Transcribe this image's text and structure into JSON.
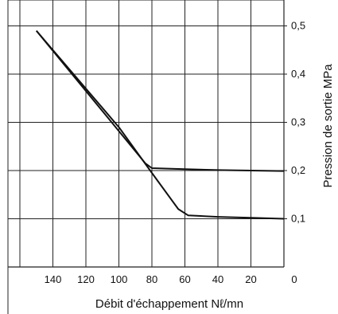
{
  "chart_data": {
    "type": "line",
    "title": "",
    "xlabel": "Débit d'échappement  Nℓ/mn",
    "ylabel": "Pression de sortie  MPa",
    "x_reversed": true,
    "xlim": [
      160,
      0
    ],
    "ylim": [
      0,
      0.55
    ],
    "grid": true,
    "x_ticks": [
      "140",
      "120",
      "100",
      "80",
      "60",
      "40",
      "20",
      "0"
    ],
    "x_tick_values": [
      140,
      120,
      100,
      80,
      60,
      40,
      20,
      0
    ],
    "y_ticks": [
      "0,5",
      "0,4",
      "0,3",
      "0,2",
      "0,1"
    ],
    "y_tick_values": [
      0.5,
      0.4,
      0.3,
      0.2,
      0.1
    ],
    "series": [
      {
        "points": [
          [
            150,
            0.49
          ],
          [
            84,
            0.215
          ],
          [
            80,
            0.205
          ],
          [
            60,
            0.203
          ],
          [
            40,
            0.201
          ],
          [
            20,
            0.2
          ],
          [
            0,
            0.199
          ]
        ]
      },
      {
        "points": [
          [
            150,
            0.49
          ],
          [
            100,
            0.29
          ],
          [
            80,
            0.195
          ],
          [
            64,
            0.12
          ],
          [
            58,
            0.107
          ],
          [
            40,
            0.104
          ],
          [
            20,
            0.102
          ],
          [
            0,
            0.1
          ]
        ]
      }
    ]
  }
}
